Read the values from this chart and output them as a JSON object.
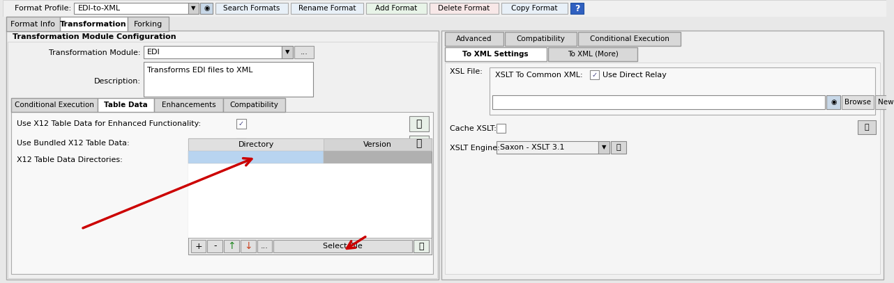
{
  "bg_color": "#e8e8e8",
  "panel_bg": "#f0f0f0",
  "white": "#ffffff",
  "border_color": "#aaaaaa",
  "dark_border": "#888888",
  "text_color": "#000000",
  "arrow_color": "#cc0000",
  "header_text": "Format Profile:",
  "profile_value": "EDI-to-XML",
  "buttons_top": [
    "Search Formats",
    "Rename Format",
    "Add Format",
    "Delete Format",
    "Copy Format"
  ],
  "tabs_main": [
    "Format Info",
    "Transformation",
    "Forking"
  ],
  "active_main_tab": "Transformation",
  "section_title": "Transformation Module Configuration",
  "label_module": "Transformation Module:",
  "module_value": "EDI",
  "label_desc": "Description:",
  "desc_value": "Transforms EDI files to XML",
  "tabs_inner": [
    "Conditional Execution",
    "Table Data",
    "Enhancements",
    "Compatibility"
  ],
  "active_inner_tab": "Table Data",
  "row1_label": "Use X12 Table Data for Enhanced Functionality:",
  "row2_label": "Use Bundled X12 Table Data:",
  "row3_label": "X12 Table Data Directories:",
  "col_directory": "Directory",
  "col_version": "Version",
  "tabs_right_top": [
    "Advanced",
    "Compatibility",
    "Conditional Execution"
  ],
  "tabs_right_mid": [
    "To XML Settings",
    "To XML (More)"
  ],
  "active_right_mid": "To XML Settings",
  "xsl_label": "XSL File:",
  "xslt_label": "XSLT To Common XML:",
  "use_direct_relay": "Use Direct Relay",
  "cache_label": "Cache XSLT:",
  "engine_label": "XSLT Engine:",
  "engine_value": "Saxon - XSLT 3.1",
  "highlight_blue": "#b8d4f0",
  "version_gray": "#b0b0b0",
  "tab_active_bg": "#ffffff",
  "tab_inactive_bg": "#d8d8d8",
  "tab_active_bold": true,
  "toolbar_bg": "#e0e0e0",
  "topbar_bg": "#f0f0f0",
  "inner_panel_bg": "#f5f5f5",
  "section_inner_bg": "#ffffff"
}
